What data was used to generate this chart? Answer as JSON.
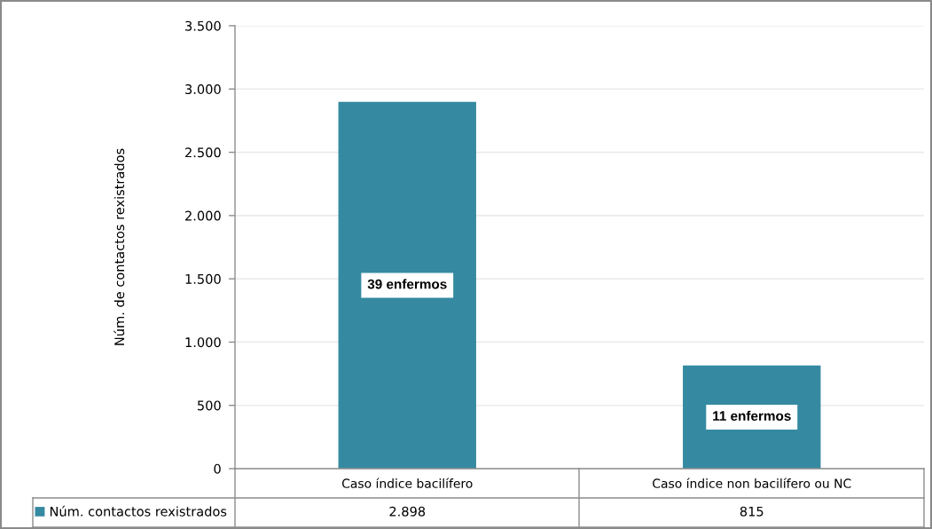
{
  "chart_data": {
    "type": "bar",
    "ylabel": "Núm. de contactos rexistrados",
    "categories": [
      "Caso índice bacilífero",
      "Caso índice non bacilífero ou NC"
    ],
    "series": [
      {
        "name": "Núm. contactos rexistrados",
        "color": "#358aa1",
        "values": [
          2898,
          815
        ],
        "value_labels": [
          "2.898",
          "815"
        ]
      }
    ],
    "ylim": [
      0,
      3500
    ],
    "yticks": [
      0,
      500,
      {
        "value": 1000,
        "label": "1.000"
      },
      {
        "value": 1500,
        "label": "1.500"
      },
      {
        "value": 2000,
        "label": "2.000"
      },
      {
        "value": 2500,
        "label": "2.500"
      },
      {
        "value": 3000,
        "label": "3.000"
      },
      {
        "value": 3500,
        "label": "3.500"
      }
    ],
    "grid": "y",
    "legend": "bottom",
    "annotations": [
      "39 enfermos",
      "11 enfermos"
    ]
  }
}
